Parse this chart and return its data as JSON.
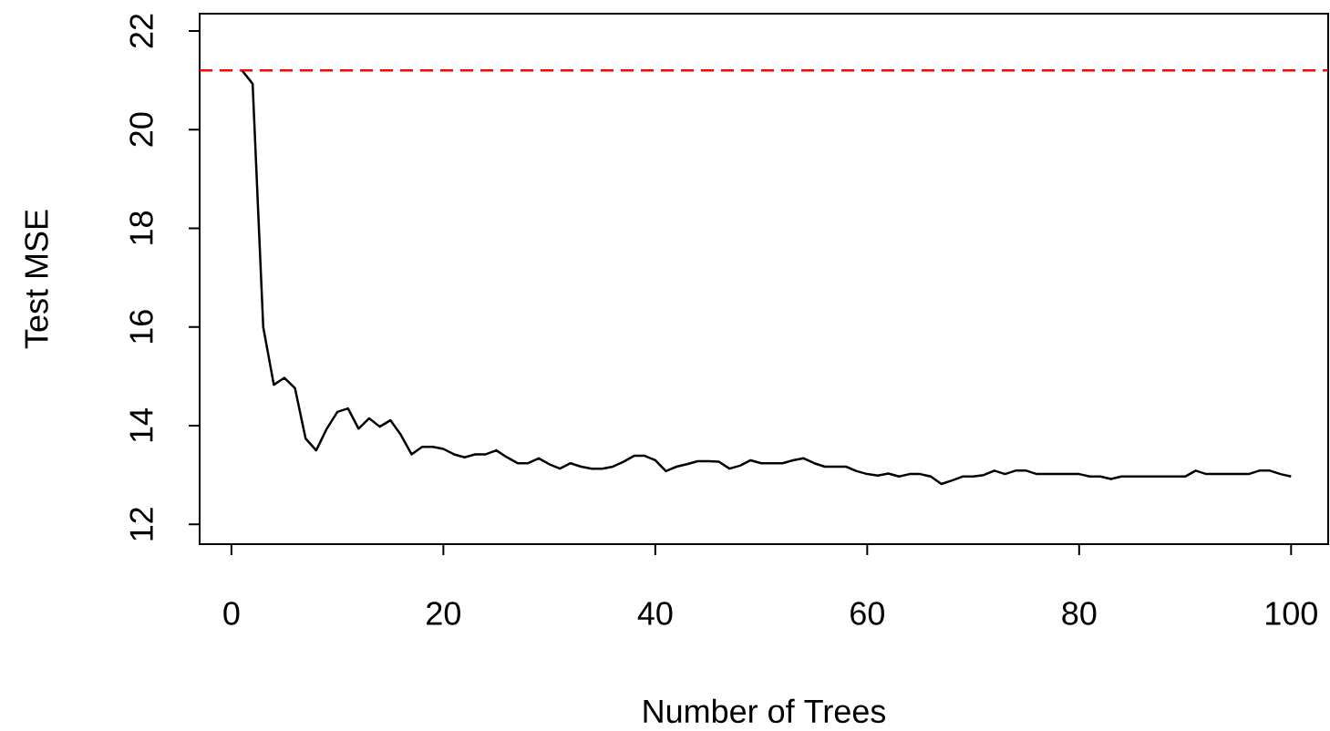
{
  "chart_data": {
    "type": "line",
    "xlabel": "Number of Trees",
    "ylabel": "Test MSE",
    "x": [
      1,
      2,
      3,
      4,
      5,
      6,
      7,
      8,
      9,
      10,
      11,
      12,
      13,
      14,
      15,
      16,
      17,
      18,
      19,
      20,
      21,
      22,
      23,
      24,
      25,
      26,
      27,
      28,
      29,
      30,
      31,
      32,
      33,
      34,
      35,
      36,
      37,
      38,
      39,
      40,
      41,
      42,
      43,
      44,
      45,
      46,
      47,
      48,
      49,
      50,
      51,
      52,
      53,
      54,
      55,
      56,
      57,
      58,
      59,
      60,
      61,
      62,
      63,
      64,
      65,
      66,
      67,
      68,
      69,
      70,
      71,
      72,
      73,
      74,
      75,
      76,
      77,
      78,
      79,
      80,
      81,
      82,
      83,
      84,
      85,
      86,
      87,
      88,
      89,
      90,
      91,
      92,
      93,
      94,
      95,
      96,
      97,
      98,
      99,
      100
    ],
    "series": [
      {
        "color": "#000000",
        "values": [
          21.2,
          20.93,
          16.0,
          14.83,
          14.97,
          14.76,
          13.74,
          13.5,
          13.94,
          14.28,
          14.35,
          13.94,
          14.15,
          13.98,
          14.11,
          13.81,
          13.42,
          13.57,
          13.57,
          13.53,
          13.42,
          13.36,
          13.42,
          13.42,
          13.5,
          13.36,
          13.24,
          13.24,
          13.34,
          13.22,
          13.13,
          13.24,
          13.17,
          13.13,
          13.13,
          13.17,
          13.27,
          13.39,
          13.39,
          13.3,
          13.08,
          13.17,
          13.22,
          13.28,
          13.28,
          13.27,
          13.13,
          13.19,
          13.3,
          13.24,
          13.24,
          13.24,
          13.3,
          13.34,
          13.24,
          13.17,
          13.17,
          13.17,
          13.08,
          13.02,
          12.99,
          13.03,
          12.97,
          13.02,
          13.02,
          12.97,
          12.82,
          12.89,
          12.97,
          12.97,
          13.0,
          13.09,
          13.02,
          13.09,
          13.09,
          13.02,
          13.02,
          13.02,
          13.02,
          13.02,
          12.97,
          12.97,
          12.92,
          12.97,
          12.97,
          12.97,
          12.97,
          12.97,
          12.97,
          12.97,
          13.09,
          13.02,
          13.02,
          13.02,
          13.02,
          13.02,
          13.09,
          13.09,
          13.02,
          12.97
        ]
      }
    ],
    "xlim": [
      -3,
      103.5
    ],
    "ylim": [
      11.6,
      22.35
    ],
    "xticks": [
      0,
      20,
      40,
      60,
      80,
      100
    ],
    "yticks": [
      12,
      14,
      16,
      18,
      20,
      22
    ],
    "ref_lines": [
      {
        "axis": "y",
        "value": 21.2,
        "color": "#ff0000",
        "line_style": "dashed"
      }
    ],
    "grid": false,
    "marker": "none",
    "line_style": "solid"
  }
}
